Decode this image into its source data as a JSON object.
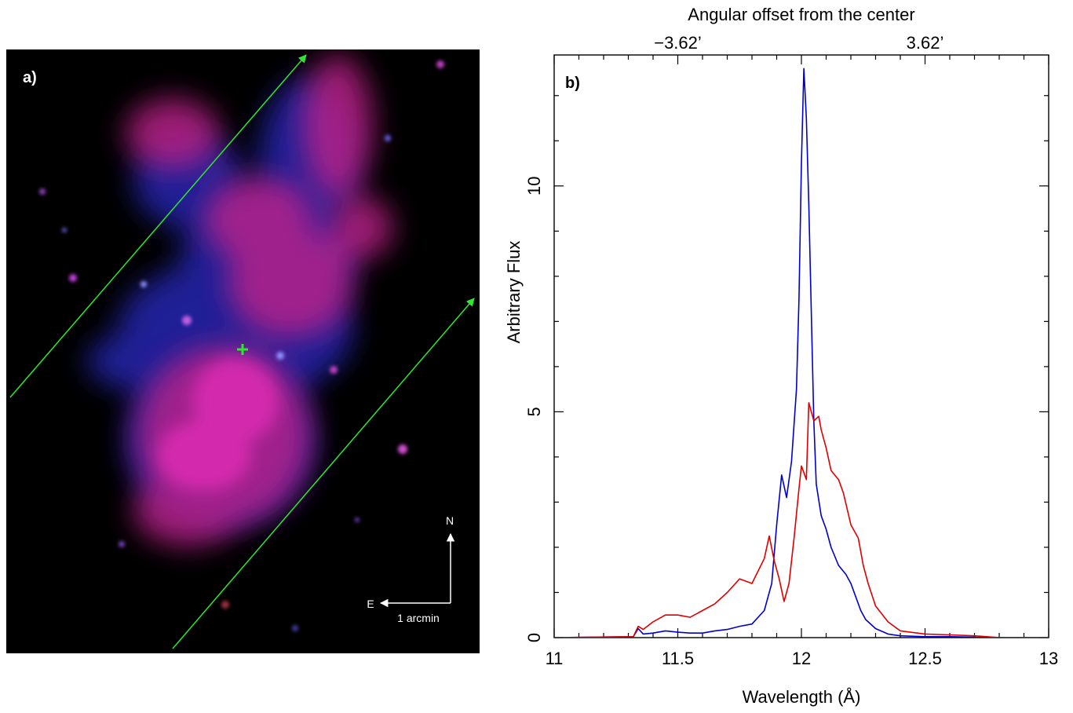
{
  "panel_a": {
    "label": "a)",
    "compass": {
      "north": "N",
      "east": "E",
      "scale": "1 arcmin"
    },
    "colors": {
      "background": "#000000",
      "slit_lines": "#2ee82e",
      "center_marker": "#2ee82e",
      "red_channel": "#e0208a",
      "blue_channel": "#3030d0",
      "compass": "#ffffff"
    }
  },
  "chart_data": {
    "type": "line",
    "panel_label": "b)",
    "title": "",
    "xlabel": "Wavelength (Å)",
    "ylabel": "Arbitrary Flux",
    "top_xlabel": "Angular offset from the center",
    "top_ticks": [
      {
        "x": 11.5,
        "label": "−3.62’"
      },
      {
        "x": 12.5,
        "label": "3.62’"
      }
    ],
    "xlim": [
      11,
      13
    ],
    "ylim": [
      0,
      12.9
    ],
    "xticks": [
      11,
      11.5,
      12,
      12.5,
      13
    ],
    "xtick_labels": [
      "11",
      "11.5",
      "12",
      "12.5",
      "13"
    ],
    "yticks": [
      0,
      5,
      10
    ],
    "ytick_labels": [
      "0",
      "5",
      "10"
    ],
    "grid": false,
    "legend": "none",
    "series": [
      {
        "color": "#0000cc",
        "x": [
          11,
          11.32,
          11.34,
          11.36,
          11.4,
          11.45,
          11.5,
          11.55,
          11.6,
          11.65,
          11.7,
          11.75,
          11.8,
          11.85,
          11.88,
          11.9,
          11.92,
          11.94,
          11.96,
          11.98,
          11.99,
          12.0,
          12.01,
          12.02,
          12.03,
          12.04,
          12.05,
          12.06,
          12.08,
          12.1,
          12.12,
          12.15,
          12.18,
          12.2,
          12.22,
          12.24,
          12.26,
          12.3,
          12.35,
          12.4,
          12.5,
          12.6,
          12.7,
          12.75,
          12.8,
          13
        ],
        "y": [
          0,
          0.02,
          0.2,
          0.08,
          0.1,
          0.15,
          0.12,
          0.1,
          0.1,
          0.15,
          0.18,
          0.25,
          0.3,
          0.6,
          1.2,
          2.5,
          3.6,
          3.1,
          3.9,
          5.5,
          7.5,
          10.5,
          12.6,
          11.5,
          9.6,
          7.2,
          4.8,
          3.4,
          2.7,
          2.4,
          2.0,
          1.6,
          1.4,
          1.2,
          0.9,
          0.6,
          0.4,
          0.2,
          0.08,
          0.04,
          0.02,
          0.02,
          0.01,
          0,
          0,
          0
        ]
      },
      {
        "color": "#dd0000",
        "x": [
          11,
          11.32,
          11.34,
          11.36,
          11.4,
          11.45,
          11.5,
          11.55,
          11.6,
          11.65,
          11.7,
          11.75,
          11.8,
          11.85,
          11.87,
          11.89,
          11.91,
          11.93,
          11.95,
          11.97,
          11.99,
          12.0,
          12.02,
          12.03,
          12.05,
          12.07,
          12.08,
          12.1,
          12.12,
          12.15,
          12.17,
          12.2,
          12.23,
          12.25,
          12.27,
          12.3,
          12.35,
          12.4,
          12.5,
          12.6,
          12.7,
          12.8,
          13
        ],
        "y": [
          0,
          0.02,
          0.25,
          0.18,
          0.35,
          0.5,
          0.5,
          0.45,
          0.6,
          0.75,
          1.0,
          1.3,
          1.2,
          1.75,
          2.25,
          1.7,
          1.3,
          0.8,
          1.2,
          2.2,
          3.3,
          3.8,
          3.5,
          5.2,
          4.8,
          4.9,
          4.6,
          4.2,
          3.7,
          3.5,
          3.2,
          2.5,
          2.2,
          1.6,
          1.2,
          0.7,
          0.35,
          0.15,
          0.08,
          0.06,
          0.04,
          0,
          0
        ]
      }
    ]
  }
}
